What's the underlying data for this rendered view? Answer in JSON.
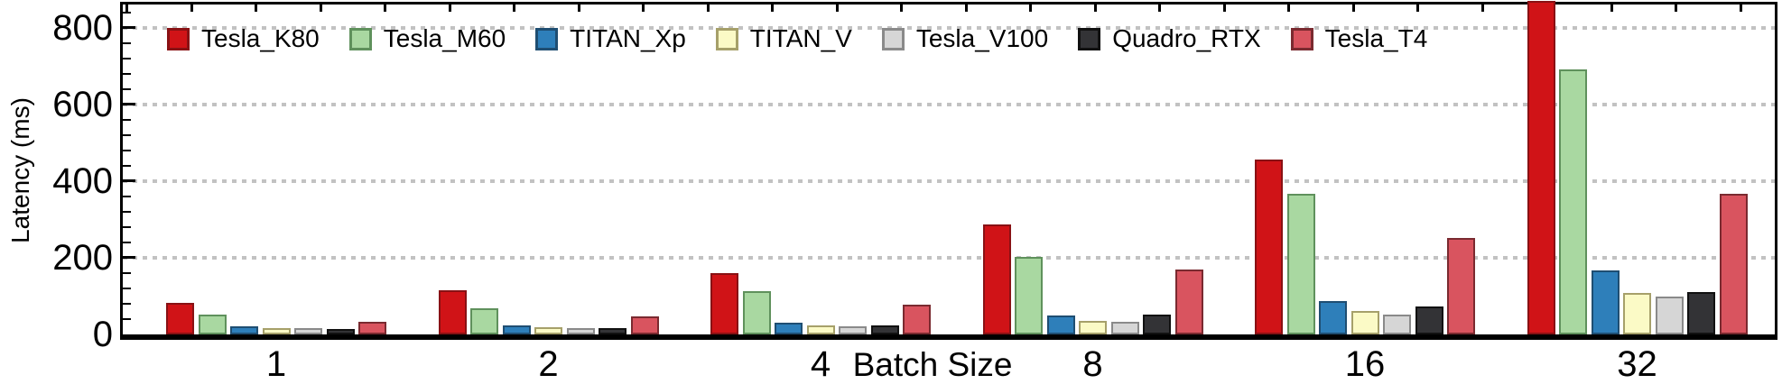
{
  "chart_data": {
    "type": "bar",
    "title": "",
    "ylabel": "Latency (ms)",
    "xlabel": "Batch Size",
    "categories": [
      "1",
      "2",
      "4",
      "8",
      "16",
      "32"
    ],
    "yticks": [
      "0",
      "200",
      "400",
      "600",
      "800"
    ],
    "ylim": [
      0,
      860
    ],
    "grid": "horizontal dotted gray lines at 200/400/600/800, minor y ticks every 40",
    "legend_position": "top-left inside plot, single row",
    "axis_color": "#000000",
    "gridline_color": "#c2c2c2",
    "notes": "Tesla_K80 bar at batch size 32 exceeds the top of the axis (clipped at ~860 ms)",
    "series": [
      {
        "name": "Tesla_K80",
        "fill": "#d01317",
        "border": "#891114",
        "values": [
          83,
          114,
          160,
          286,
          455,
          870
        ]
      },
      {
        "name": "Tesla_M60",
        "fill": "#a9d8a1",
        "border": "#5f915c",
        "values": [
          51,
          69,
          112,
          202,
          366,
          690
        ]
      },
      {
        "name": "TITAN_Xp",
        "fill": "#2e7fba",
        "border": "#1f4e72",
        "values": [
          21,
          23,
          30,
          50,
          86,
          166
        ]
      },
      {
        "name": "TITAN_V",
        "fill": "#fbfac6",
        "border": "#a6a06a",
        "values": [
          17,
          19,
          23,
          36,
          61,
          108
        ]
      },
      {
        "name": "Tesla_V100",
        "fill": "#d6d6d6",
        "border": "#8a8a8a",
        "values": [
          16,
          17,
          21,
          32,
          52,
          98
        ]
      },
      {
        "name": "Quadro_RTX",
        "fill": "#333336",
        "border": "#111111",
        "values": [
          15,
          16,
          23,
          52,
          74,
          110
        ]
      },
      {
        "name": "Tesla_T4",
        "fill": "#d9545f",
        "border": "#7a2a30",
        "values": [
          34,
          46,
          77,
          170,
          251,
          367
        ]
      }
    ]
  }
}
